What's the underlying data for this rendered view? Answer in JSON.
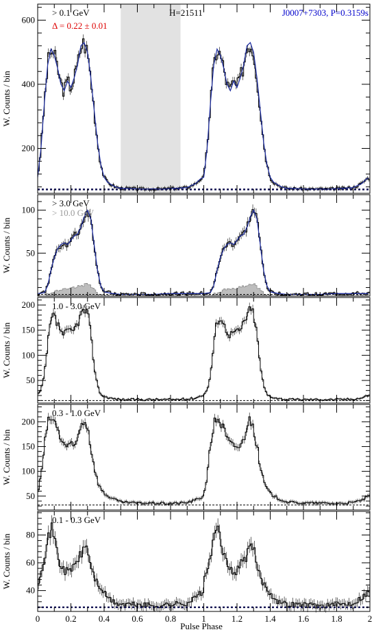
{
  "chart_data": [
    {
      "type": "line",
      "panel": "top",
      "ylabel": "W. Counts / bin",
      "xlim": [
        0,
        2
      ],
      "ylim": [
        60,
        650
      ],
      "yticks": [
        200,
        400,
        600
      ],
      "xticks": [
        0,
        0.2,
        0.4,
        0.6,
        0.8,
        1,
        1.2,
        1.4,
        1.6,
        1.8,
        2
      ],
      "xticklabels_shown": false,
      "annotations": {
        "energy": "> 0.1 GeV",
        "delta": "Δ = 0.22 ± 0.01",
        "htest": "H=21511",
        "pulsar": "J0007+7303, P=0.3159s"
      },
      "shaded_region": [
        0.5,
        0.86
      ],
      "background_level": 72,
      "profile_x": [
        0,
        0.02,
        0.04,
        0.06,
        0.08,
        0.1,
        0.12,
        0.14,
        0.16,
        0.18,
        0.2,
        0.22,
        0.24,
        0.26,
        0.28,
        0.3,
        0.32,
        0.34,
        0.36,
        0.38,
        0.4,
        0.42,
        0.44,
        0.46,
        0.48,
        0.5,
        0.55,
        0.6,
        0.65,
        0.7,
        0.75,
        0.8,
        0.85,
        0.9,
        0.95,
        0.98,
        1.0
      ],
      "profile_y": [
        110,
        200,
        340,
        460,
        510,
        490,
        450,
        400,
        380,
        410,
        390,
        420,
        460,
        520,
        530,
        500,
        420,
        320,
        220,
        150,
        110,
        95,
        88,
        82,
        78,
        76,
        75,
        74,
        73,
        74,
        73,
        75,
        76,
        78,
        90,
        105,
        110
      ]
    },
    {
      "type": "line",
      "panel": "second",
      "ylabel": "W. Counts / bin",
      "xlim": [
        0,
        2
      ],
      "ylim": [
        0,
        118
      ],
      "yticks": [
        50,
        100
      ],
      "annotations": {
        "energy": "> 3.0 GeV",
        "energy2": "> 10.0 GeV"
      },
      "background_level": 2,
      "profile_x": [
        0,
        0.04,
        0.06,
        0.08,
        0.1,
        0.12,
        0.14,
        0.16,
        0.18,
        0.2,
        0.22,
        0.24,
        0.26,
        0.28,
        0.3,
        0.32,
        0.34,
        0.36,
        0.38,
        0.4,
        0.45,
        0.5,
        0.6,
        0.7,
        0.8,
        0.9,
        1.0
      ],
      "profile_y": [
        3,
        4,
        12,
        30,
        45,
        55,
        60,
        62,
        60,
        65,
        70,
        72,
        80,
        92,
        100,
        90,
        60,
        30,
        12,
        5,
        3,
        2,
        2,
        2,
        3,
        3,
        3
      ],
      "profile2_y": [
        0,
        0,
        2,
        4,
        6,
        7,
        8,
        8,
        8,
        9,
        10,
        11,
        12,
        13,
        14,
        11,
        7,
        3,
        1,
        0,
        0,
        0,
        0,
        0,
        0,
        0,
        0
      ]
    },
    {
      "type": "line",
      "panel": "third",
      "ylabel": "W. Counts / bin",
      "xlim": [
        0,
        2
      ],
      "ylim": [
        5,
        215
      ],
      "yticks": [
        50,
        100,
        150,
        200
      ],
      "annotations": {
        "energy": "1.0 - 3.0 GeV"
      },
      "background_level": 10,
      "profile_x": [
        0,
        0.02,
        0.04,
        0.06,
        0.08,
        0.1,
        0.12,
        0.14,
        0.16,
        0.18,
        0.2,
        0.22,
        0.24,
        0.26,
        0.28,
        0.3,
        0.32,
        0.34,
        0.36,
        0.38,
        0.4,
        0.45,
        0.5,
        0.6,
        0.7,
        0.8,
        0.9,
        0.95,
        1.0
      ],
      "profile_y": [
        22,
        30,
        60,
        120,
        170,
        178,
        160,
        150,
        140,
        148,
        145,
        150,
        165,
        180,
        190,
        185,
        140,
        80,
        40,
        22,
        18,
        14,
        12,
        12,
        12,
        12,
        13,
        15,
        22
      ]
    },
    {
      "type": "line",
      "panel": "fourth",
      "ylabel": "W. Counts / bin",
      "xlim": [
        0,
        2
      ],
      "ylim": [
        22,
        235
      ],
      "yticks": [
        50,
        100,
        150,
        200
      ],
      "annotations": {
        "energy": "0.3 - 1.0 GeV"
      },
      "background_level": 32,
      "profile_x": [
        0,
        0.02,
        0.04,
        0.06,
        0.08,
        0.1,
        0.12,
        0.14,
        0.16,
        0.18,
        0.2,
        0.22,
        0.24,
        0.26,
        0.28,
        0.3,
        0.32,
        0.34,
        0.36,
        0.38,
        0.4,
        0.45,
        0.5,
        0.6,
        0.7,
        0.8,
        0.9,
        0.95,
        1.0
      ],
      "profile_y": [
        55,
        90,
        150,
        195,
        210,
        200,
        185,
        165,
        155,
        150,
        152,
        148,
        165,
        195,
        205,
        190,
        150,
        110,
        80,
        65,
        55,
        45,
        38,
        36,
        36,
        35,
        37,
        42,
        50
      ]
    },
    {
      "type": "line",
      "panel": "bottom",
      "ylabel": "W. Counts / bin",
      "xlabel": "Pulse Phase",
      "xlim": [
        0,
        2
      ],
      "ylim": [
        25,
        97
      ],
      "yticks": [
        40,
        60,
        80
      ],
      "xticks": [
        0,
        0.2,
        0.4,
        0.6,
        0.8,
        1,
        1.2,
        1.4,
        1.6,
        1.8,
        2
      ],
      "xticklabels": [
        "0",
        "0.2",
        "0.4",
        "0.6",
        "0.8",
        "1",
        "1.2",
        "1.4",
        "1.6",
        "1.8",
        "2"
      ],
      "annotations": {
        "energy": "0.1 - 0.3 GeV"
      },
      "background_level": 28,
      "profile_x": [
        0,
        0.02,
        0.04,
        0.06,
        0.08,
        0.1,
        0.12,
        0.14,
        0.16,
        0.18,
        0.2,
        0.22,
        0.24,
        0.26,
        0.28,
        0.3,
        0.32,
        0.34,
        0.36,
        0.38,
        0.4,
        0.45,
        0.5,
        0.6,
        0.7,
        0.8,
        0.9,
        0.95,
        1.0
      ],
      "profile_y": [
        45,
        55,
        65,
        75,
        85,
        80,
        65,
        58,
        55,
        53,
        55,
        58,
        62,
        65,
        72,
        70,
        58,
        50,
        45,
        42,
        38,
        32,
        30,
        30,
        29,
        30,
        31,
        35,
        40
      ]
    }
  ]
}
